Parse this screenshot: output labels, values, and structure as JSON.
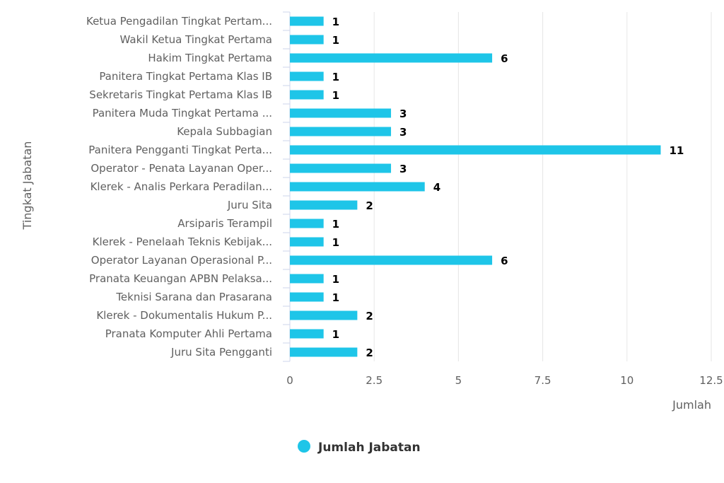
{
  "chart_data": {
    "type": "bar",
    "orientation": "horizontal",
    "categories": [
      "Ketua Pengadilan Tingkat Pertam...",
      "Wakil Ketua Tingkat Pertama",
      "Hakim Tingkat Pertama",
      "Panitera Tingkat Pertama Klas IB",
      "Sekretaris Tingkat Pertama Klas IB",
      "Panitera Muda Tingkat Pertama ...",
      "Kepala Subbagian",
      "Panitera Pengganti Tingkat Perta...",
      "Operator - Penata Layanan Oper...",
      "Klerek - Analis Perkara Peradilan...",
      "Juru Sita",
      "Arsiparis Terampil",
      "Klerek - Penelaah Teknis Kebijak...",
      "Operator Layanan Operasional P...",
      "Pranata Keuangan APBN Pelaksa...",
      "Teknisi Sarana dan Prasarana",
      "Klerek - Dokumentalis Hukum P...",
      "Pranata Komputer Ahli Pertama",
      "Juru Sita Pengganti"
    ],
    "series": [
      {
        "name": "Jumlah Jabatan",
        "values": [
          1,
          1,
          6,
          1,
          1,
          3,
          3,
          11,
          3,
          4,
          2,
          1,
          1,
          6,
          1,
          1,
          2,
          1,
          2
        ]
      }
    ],
    "xlabel": "Jumlah",
    "ylabel": "Tingkat Jabatan",
    "xlim": [
      0,
      12.5
    ],
    "xticks": [
      "0",
      "2.5",
      "5",
      "7.5",
      "10",
      "12.5"
    ],
    "xtick_values": [
      0,
      2.5,
      5,
      7.5,
      10,
      12.5
    ],
    "grid": true,
    "legend_position": "bottom-center",
    "colors": {
      "bar": "#1ec5e8",
      "grid": "#e6e6e6",
      "axis": "#ccd6eb"
    }
  }
}
